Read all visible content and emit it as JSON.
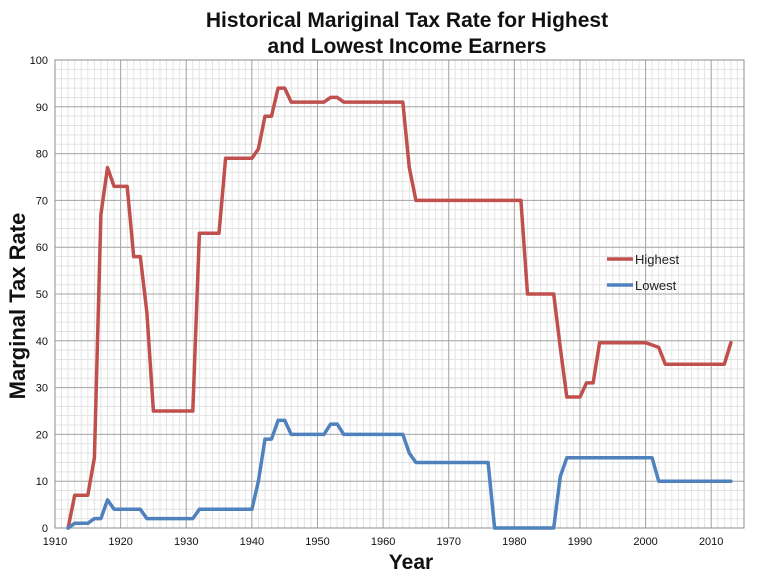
{
  "chart_data": {
    "type": "line",
    "title": [
      "Historical Mariginal Tax Rate for Highest",
      "and Lowest Income Earners"
    ],
    "xlabel": "Year",
    "ylabel": "Marginal Tax Rate",
    "xlim": [
      1910,
      2015
    ],
    "ylim": [
      0,
      100
    ],
    "xticks": [
      1910,
      1920,
      1930,
      1940,
      1950,
      1960,
      1970,
      1980,
      1990,
      2000,
      2010
    ],
    "yticks": [
      0,
      10,
      20,
      30,
      40,
      50,
      60,
      70,
      80,
      90,
      100
    ],
    "grid": true,
    "legend_position": "right",
    "series": [
      {
        "name": "Highest",
        "color": "#c0504d",
        "points": [
          [
            1912,
            0
          ],
          [
            1913,
            7
          ],
          [
            1915,
            7
          ],
          [
            1916,
            15
          ],
          [
            1917,
            67
          ],
          [
            1918,
            77
          ],
          [
            1919,
            73
          ],
          [
            1921,
            73
          ],
          [
            1922,
            58
          ],
          [
            1923,
            58
          ],
          [
            1924,
            46
          ],
          [
            1925,
            25
          ],
          [
            1931,
            25
          ],
          [
            1932,
            63
          ],
          [
            1935,
            63
          ],
          [
            1936,
            79
          ],
          [
            1940,
            79
          ],
          [
            1941,
            81
          ],
          [
            1942,
            88
          ],
          [
            1943,
            88
          ],
          [
            1944,
            94
          ],
          [
            1945,
            94
          ],
          [
            1946,
            91
          ],
          [
            1951,
            91
          ],
          [
            1952,
            92
          ],
          [
            1953,
            92
          ],
          [
            1954,
            91
          ],
          [
            1963,
            91
          ],
          [
            1964,
            77
          ],
          [
            1965,
            70
          ],
          [
            1981,
            70
          ],
          [
            1982,
            50
          ],
          [
            1986,
            50
          ],
          [
            1987,
            38.5
          ],
          [
            1988,
            28
          ],
          [
            1990,
            28
          ],
          [
            1991,
            31
          ],
          [
            1992,
            31
          ],
          [
            1993,
            39.6
          ],
          [
            2000,
            39.6
          ],
          [
            2001,
            39.1
          ],
          [
            2002,
            38.6
          ],
          [
            2003,
            35
          ],
          [
            2012,
            35
          ],
          [
            2013,
            39.6
          ]
        ]
      },
      {
        "name": "Lowest",
        "color": "#4f81bd",
        "points": [
          [
            1912,
            0
          ],
          [
            1913,
            1
          ],
          [
            1915,
            1
          ],
          [
            1916,
            2
          ],
          [
            1917,
            2
          ],
          [
            1918,
            6
          ],
          [
            1919,
            4
          ],
          [
            1923,
            4
          ],
          [
            1924,
            2
          ],
          [
            1931,
            2
          ],
          [
            1932,
            4
          ],
          [
            1940,
            4
          ],
          [
            1941,
            10
          ],
          [
            1942,
            19
          ],
          [
            1943,
            19
          ],
          [
            1944,
            23
          ],
          [
            1945,
            23
          ],
          [
            1946,
            20
          ],
          [
            1951,
            20
          ],
          [
            1952,
            22.2
          ],
          [
            1953,
            22.2
          ],
          [
            1954,
            20
          ],
          [
            1963,
            20
          ],
          [
            1964,
            16
          ],
          [
            1965,
            14
          ],
          [
            1976,
            14
          ],
          [
            1977,
            0
          ],
          [
            1986,
            0
          ],
          [
            1987,
            11
          ],
          [
            1988,
            15
          ],
          [
            2001,
            15
          ],
          [
            2002,
            10
          ],
          [
            2013,
            10
          ]
        ]
      }
    ]
  }
}
